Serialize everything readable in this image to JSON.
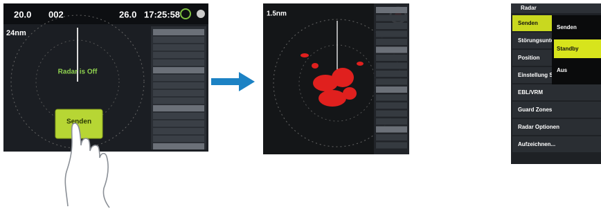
{
  "left_screen": {
    "status_bar": [
      "20.0",
      "002",
      "26.0",
      "17:25:58"
    ],
    "range": "24nm",
    "center_label": "Radar is Off",
    "button": "Senden"
  },
  "middle_screen": {
    "range": "1.5nm"
  },
  "menu": {
    "title": "Radar",
    "items": [
      "Senden",
      "Störungsunterdrück",
      "Position",
      "Einstellung Symbol",
      "EBL/VRM",
      "Guard Zones",
      "Radar Optionen",
      "Aufzeichnen..."
    ],
    "popup": [
      "Senden",
      "Standby",
      "Aus"
    ]
  }
}
